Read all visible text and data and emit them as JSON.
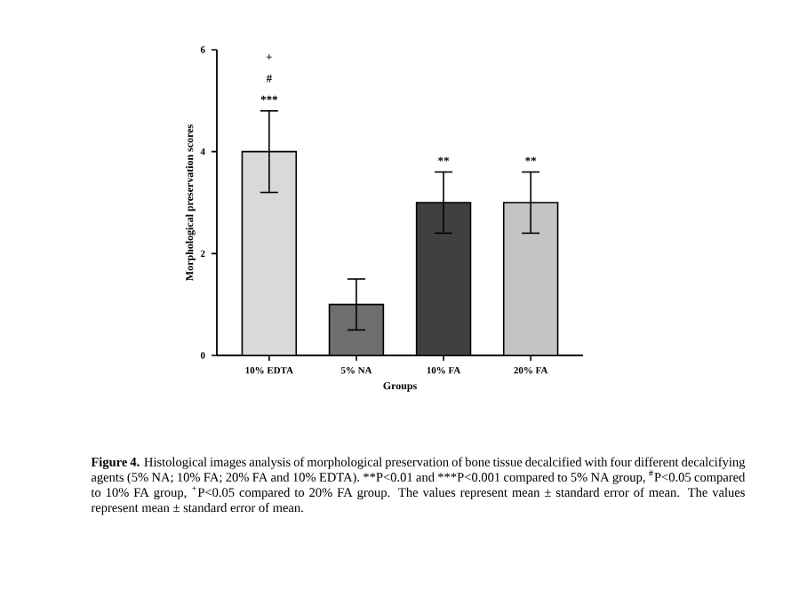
{
  "chart_data": {
    "type": "bar",
    "xlabel": "Groups",
    "ylabel": "Morphological preservation scores",
    "categories": [
      "10% EDTA",
      "5% NA",
      "10% FA",
      "20% FA"
    ],
    "values": [
      4,
      1,
      3,
      3
    ],
    "errors": [
      0.8,
      0.5,
      0.6,
      0.6
    ],
    "colors": [
      "#d9d9d9",
      "#6e6e6e",
      "#404040",
      "#c4c4c4"
    ],
    "ylim": [
      0,
      6
    ],
    "yticks": [
      0,
      2,
      4,
      6
    ],
    "grid": false,
    "annotations": [
      "**Figure 4.** Histological images analysis of morphological preservation of bone tissue decalcified with four different decalcifying agents (5% NA; 10% FA; 20% FA and 10% EDTA).",
      "**P<0.01 and",
      "***P<0.001 compared to 5% NA group, $^{#}$P<0.05 compared to 10% FA group, $^{+}$P<0.05 compared to 20% FA group. The values represent mean ± standard error of mean. The values represent mean ± standard error of mean.",
      {
        "text": "***",
        "x": "10% EDTA",
        "y": 4.8
      },
      "#",
      "+",
      {
        "text": "**",
        "x": "10% FA",
        "y": 3.6
      },
      {
        "text": "**",
        "x": "20% FA",
        "y": 3.6
      }
    ]
  }
}
